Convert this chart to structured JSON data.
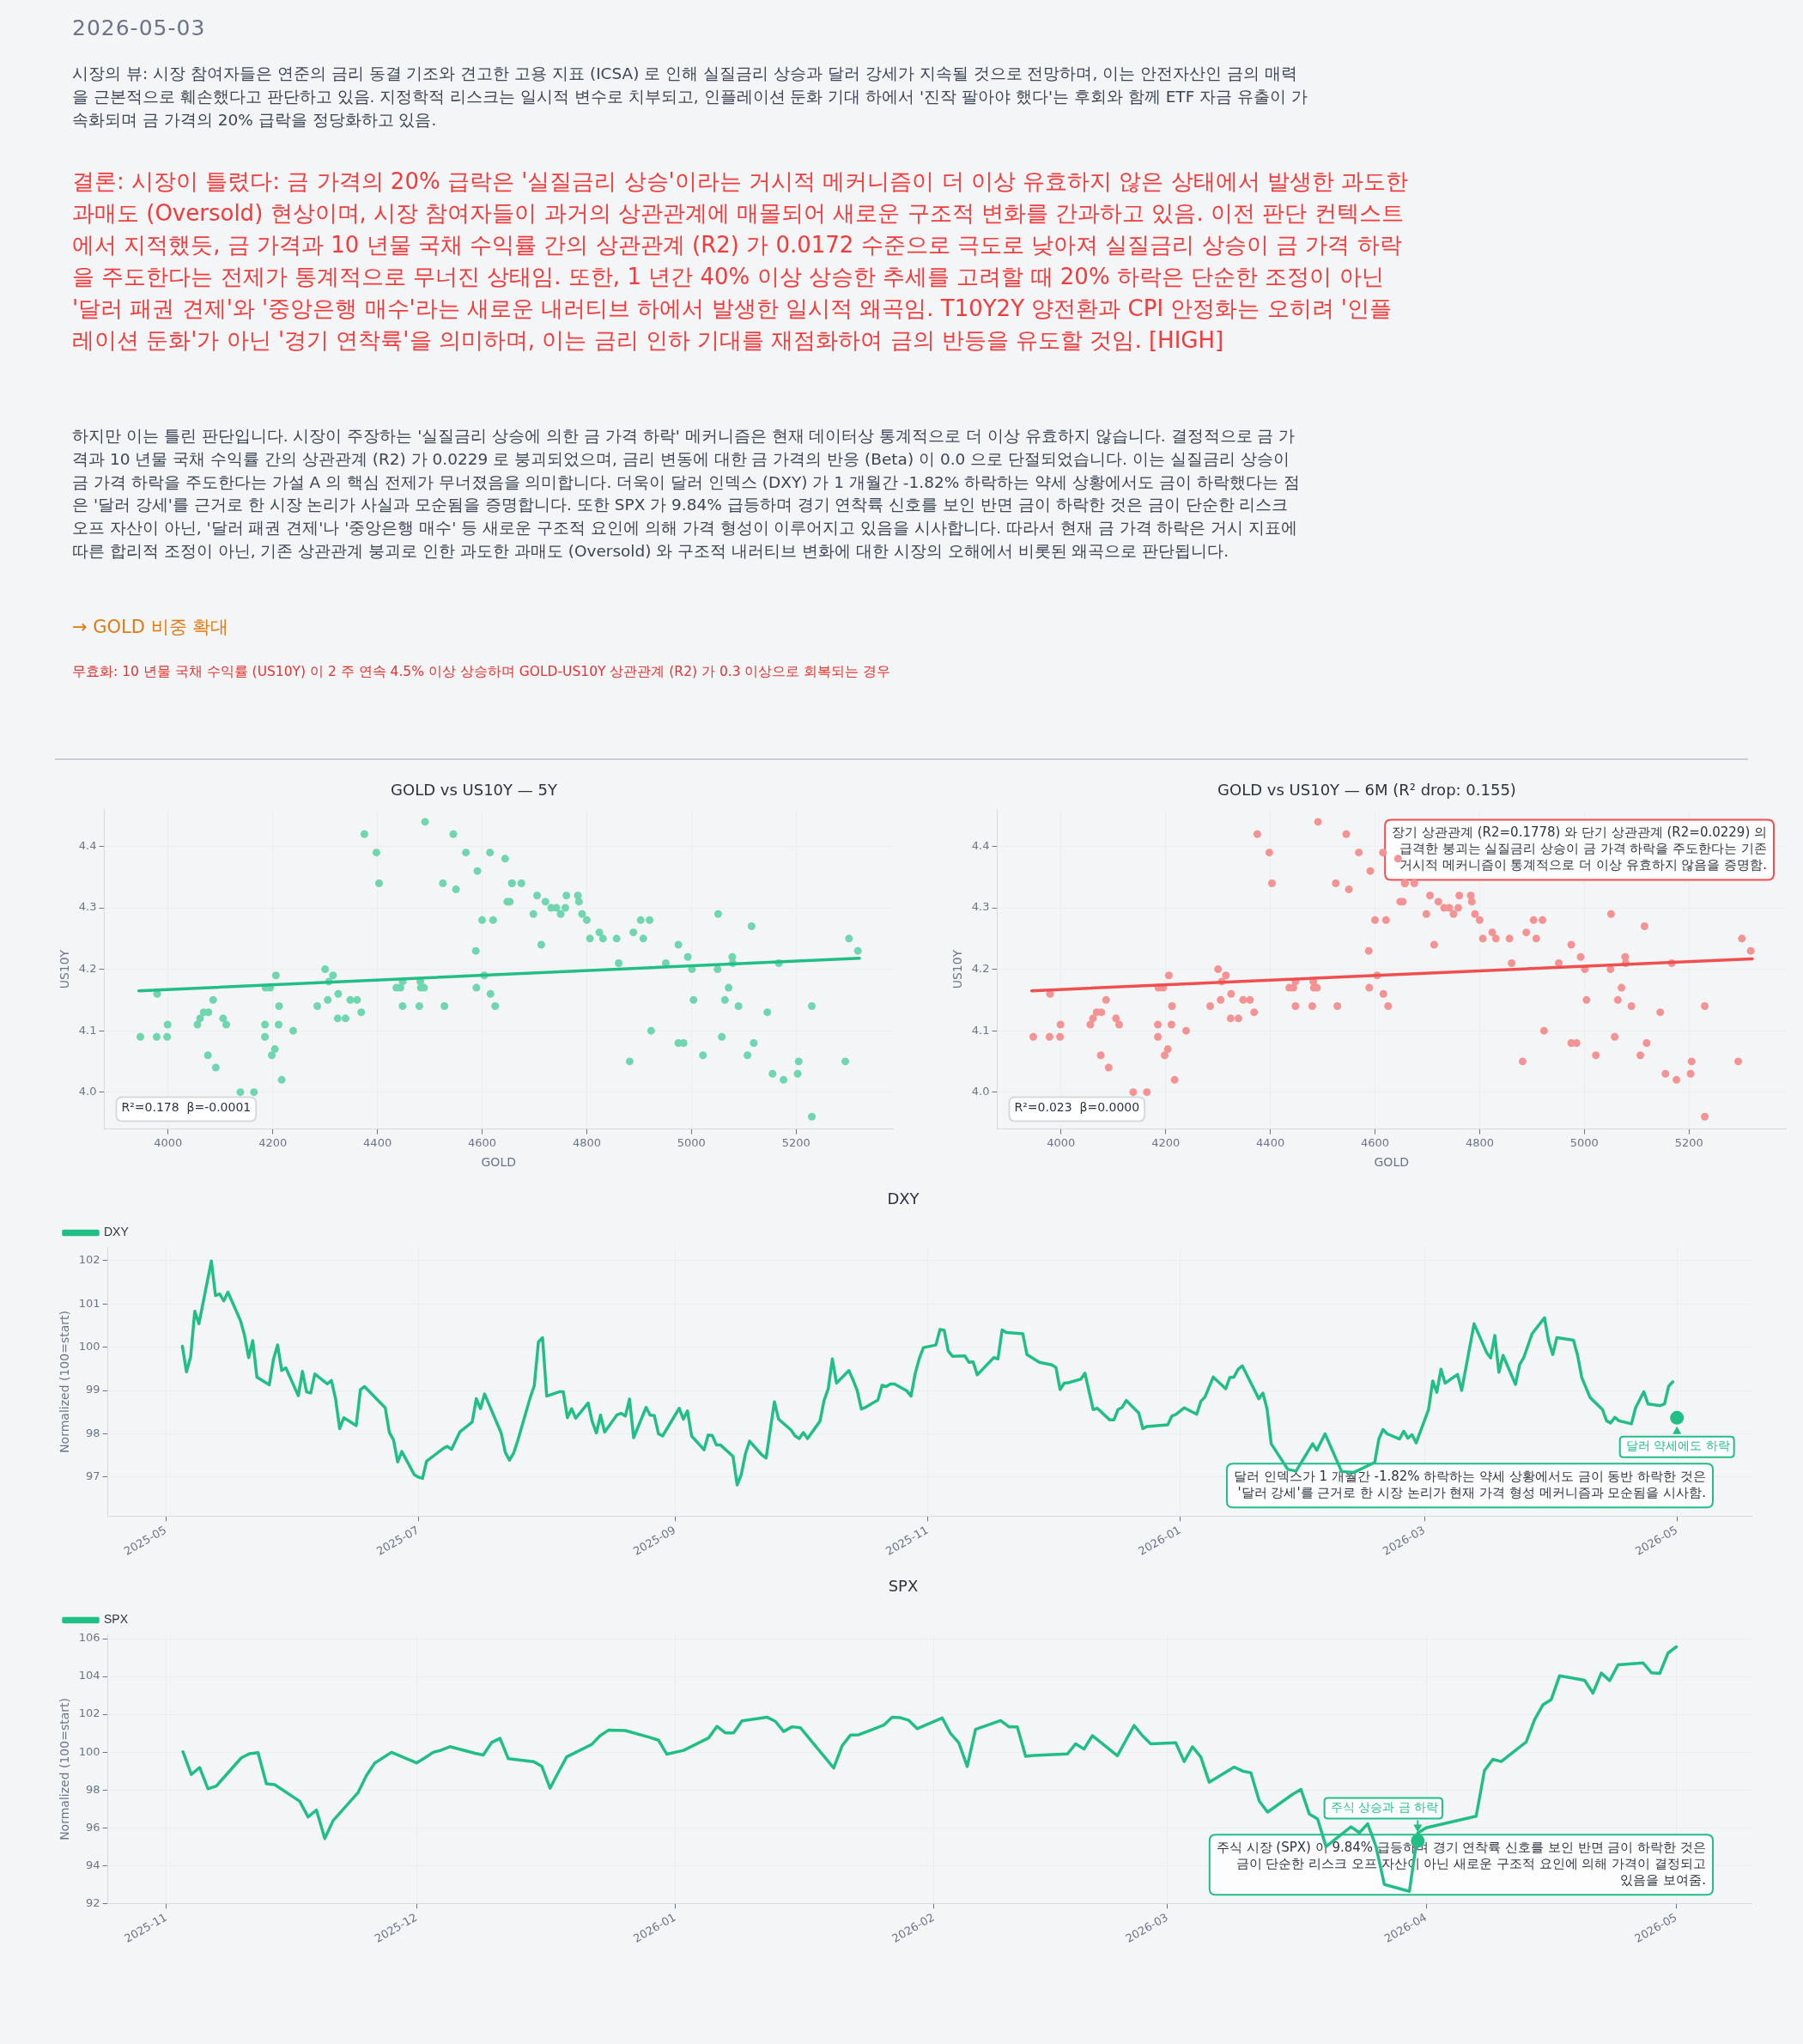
{
  "chart_data": [
    {
      "type": "other",
      "annotations": [
        "2026-05-03",
        "시장의 뷰: 시장 참여자들은 연준의 금리 동결 기조와 견고한 고용 지표 (ICSA) 로 인해 실질금리 상승과 달러 강세가 지속될 것으로 전망하며, 이는 안전자산인 금의 매력을 근본적으로 훼손했다고 판단하고 있음. 지정학적 리스크는 일시적 변수로 치부되고, 인플레이션 둔화 기대 하에서 '진작 팔아야 했다'는 후회와 함께 ETF 자금 유출이 가속화되며 금 가격의 20% 급락을 정당화하고 있음.",
        "결론: 시장이 틀렸다: 금 가격의 20% 급락은 '실질금리 상승'이라는 거시적 메커니즘이 더 이상 유효하지 않은 상태에서 발생한 과도한 과매도 (Oversold) 현상이며, 시장 참여자들이 과거의 상관관계에 매몰되어 새로운 구조적 변화를 간과하고 있음. 이전 판단 컨텍스트에서 지적했듯, 금 가격과 10 년물 국채 수익률 간의 상관관계 (R2) 가 0.0172 수준으로 극도로 낮아져 실질금리 상승이 금 가격 하락을 주도한다는 전제가 통계적으로 무너진 상태임. 또한, 1 년간 40% 이상 상승한 추세를 고려할 때 20% 하락은 단순한 조정이 아닌 '달러 패권 견제'와 '중앙은행 매수'라는 새로운 내러티브 하에서 발생한 일시적 왜곡임. T10Y2Y 양전환과 CPI 안정화는 오히려 '인플레이션 둔화'가 아닌 '경기 연착륙'을 의미하며, 이는 금리 인하 기대를 재점화하여 금의 반등을 유도할 것임.  [HIGH]",
        "하지만 이는 틀린 판단입니다. 시장이 주장하는 '실질금리 상승에 의한 금 가격 하락' 메커니즘은 현재 데이터상 통계적으로 더 이상 유효하지 않습니다. 결정적으로 금 가격과 10 년물 국채 수익률 간의 상관관계 (R2) 가 0.0229 로 붕괴되었으며, 금리 변동에 대한 금 가격의 반응 (Beta) 이 0.0 으로 단절되었습니다. 이는 실질금리 상승이 금 가격 하락을 주도한다는 가설 A 의 핵심 전제가 무너졌음을 의미합니다. 더욱이 달러 인덱스 (DXY) 가 1 개월간 -1.82% 하락하는 약세 상황에서도 금이 하락했다는 점은 '달러 강세'를 근거로 한 시장 논리가 사실과 모순됨을 증명합니다. 또한 SPX 가 9.84% 급등하며 경기 연착륙 신호를 보인 반면 금이 하락한 것은 금이 단순한 리스크 오프 자산이 아닌, '달러 패권 견제'나 '중앙은행 매수' 등 새로운 구조적 요인에 의해 가격 형성이 이루어지고 있음을 시사합니다. 따라서 현재 금 가격 하락은 거시 지표에 따른 합리적 조정이 아닌, 기존 상관관계 붕괴로 인한 과도한 과매도 (Oversold) 와 구조적 내러티브 변화에 대한 시장의 오해에서 비롯된 왜곡으로 판단됩니다.",
        "→ GOLD 비중 확대",
        "무효화: 10 년물 국채 수익률 (US10Y) 이 2 주 연속 4.5% 이상 상승하며 GOLD-US10Y 상관관계 (R2) 가 0.3 이상으로 회복되는 경우"
      ]
    },
    {
      "type": "scatter",
      "title": "GOLD vs US10Y — 5Y",
      "xlabel": "GOLD",
      "ylabel": "US10Y",
      "xlim": [
        3878,
        5385
      ],
      "ylim": [
        3.94,
        4.46
      ],
      "xticks": [
        4000,
        4200,
        4400,
        4600,
        4800,
        5000,
        5200
      ],
      "yticks": [
        {
          "value": 4,
          "label": "4.0"
        },
        4.1,
        4.2,
        4.3,
        4.4
      ],
      "grid": true,
      "series": [
        {
          "type": "scatter",
          "color": "#6fd6af",
          "x": [
            3947,
            3979,
            3978,
            3999,
            3998,
            4056,
            4061,
            4068,
            4077,
            4076,
            4086,
            4091,
            4105,
            4111,
            4138,
            4164,
            4186,
            4185,
            4185,
            4195,
            4206,
            4198,
            4204,
            4212,
            4211,
            4217,
            4239,
            4285,
            4300,
            4307,
            4315,
            4305,
            4325,
            4324,
            4339,
            4348,
            4361,
            4369,
            4375,
            4398,
            4403,
            4436,
            4444,
            4448,
            4448,
            4480,
            4482,
            4483,
            4489,
            4491,
            4528,
            4525,
            4545,
            4550,
            4569,
            4588,
            4589,
            4591,
            4600,
            4604,
            4615,
            4616,
            4621,
            4625,
            4644,
            4648,
            4653,
            4657,
            4657,
            4675,
            4698,
            4705,
            4713,
            4721,
            4732,
            4742,
            4750,
            4759,
            4761,
            4783,
            4785,
            4791,
            4800,
            4806,
            4824,
            4831,
            4857,
            4861,
            4882,
            4889,
            4903,
            4908,
            4920,
            4923,
            4951,
            4975,
            4975,
            4985,
            4993,
            5001,
            5004,
            5022,
            5050,
            5051,
            5058,
            5064,
            5071,
            5078,
            5079,
            5090,
            5107,
            5115,
            5119,
            5145,
            5155,
            5167,
            5176,
            5203,
            5205,
            5230,
            5230,
            5294,
            5301,
            5318
          ],
          "values": [
            4.09,
            4.16,
            4.09,
            4.11,
            4.09,
            4.11,
            4.12,
            4.13,
            4.13,
            4.06,
            4.15,
            4.04,
            4.12,
            4.11,
            4.0,
            4.0,
            4.17,
            4.11,
            4.09,
            4.17,
            4.19,
            4.06,
            4.07,
            4.14,
            4.11,
            4.02,
            4.1,
            4.14,
            4.2,
            4.18,
            4.19,
            4.15,
            4.16,
            4.12,
            4.12,
            4.15,
            4.15,
            4.13,
            4.42,
            4.39,
            4.34,
            4.17,
            4.17,
            4.18,
            4.14,
            4.14,
            4.18,
            4.17,
            4.17,
            4.44,
            4.14,
            4.34,
            4.42,
            4.33,
            4.39,
            4.23,
            4.17,
            4.36,
            4.28,
            4.19,
            4.39,
            4.16,
            4.28,
            4.14,
            4.38,
            4.31,
            4.31,
            4.34,
            4.34,
            4.34,
            4.29,
            4.32,
            4.24,
            4.31,
            4.3,
            4.3,
            4.29,
            4.3,
            4.32,
            4.32,
            4.31,
            4.29,
            4.28,
            4.25,
            4.26,
            4.25,
            4.25,
            4.21,
            4.05,
            4.26,
            4.28,
            4.25,
            4.28,
            4.1,
            4.21,
            4.24,
            4.08,
            4.08,
            4.22,
            4.2,
            4.15,
            4.06,
            4.2,
            4.29,
            4.09,
            4.15,
            4.17,
            4.22,
            4.21,
            4.14,
            4.06,
            4.27,
            4.08,
            4.13,
            4.03,
            4.21,
            4.02,
            4.03,
            4.05,
            4.14,
            3.96,
            4.05,
            4.25,
            4.23
          ]
        },
        {
          "type": "line",
          "color": "#21bf85",
          "x": [
            3944,
            5321
          ],
          "values": [
            4.165,
            4.218
          ]
        }
      ],
      "annotations": [
        "R²=0.178  β=-0.0001"
      ]
    },
    {
      "type": "scatter",
      "title": "GOLD vs US10Y — 6M (R² drop: 0.155)",
      "xlabel": "GOLD",
      "ylabel": "US10Y",
      "xlim": [
        3878,
        5385
      ],
      "ylim": [
        3.94,
        4.46
      ],
      "xticks": [
        4000,
        4200,
        4400,
        4600,
        4800,
        5000,
        5200
      ],
      "yticks": [
        {
          "value": 4,
          "label": "4.0"
        },
        4.1,
        4.2,
        4.3,
        4.4
      ],
      "grid": true,
      "series": [
        {
          "type": "scatter",
          "color": "#f49393",
          "x": [
            3947,
            3979,
            3978,
            3999,
            3998,
            4056,
            4061,
            4068,
            4077,
            4076,
            4086,
            4091,
            4105,
            4111,
            4138,
            4164,
            4186,
            4185,
            4185,
            4195,
            4206,
            4198,
            4204,
            4212,
            4211,
            4217,
            4239,
            4285,
            4300,
            4307,
            4315,
            4305,
            4325,
            4324,
            4339,
            4348,
            4361,
            4369,
            4375,
            4398,
            4403,
            4436,
            4444,
            4448,
            4448,
            4480,
            4482,
            4483,
            4489,
            4491,
            4528,
            4525,
            4545,
            4550,
            4569,
            4588,
            4589,
            4591,
            4600,
            4604,
            4615,
            4616,
            4621,
            4625,
            4644,
            4648,
            4653,
            4657,
            4657,
            4675,
            4698,
            4705,
            4713,
            4721,
            4732,
            4742,
            4750,
            4759,
            4761,
            4783,
            4785,
            4791,
            4800,
            4806,
            4824,
            4831,
            4857,
            4861,
            4882,
            4889,
            4903,
            4908,
            4920,
            4923,
            4951,
            4975,
            4975,
            4985,
            4993,
            5001,
            5004,
            5022,
            5050,
            5051,
            5058,
            5064,
            5071,
            5078,
            5079,
            5090,
            5107,
            5115,
            5119,
            5145,
            5155,
            5167,
            5176,
            5203,
            5205,
            5230,
            5230,
            5294,
            5301,
            5318
          ],
          "values": [
            4.09,
            4.16,
            4.09,
            4.11,
            4.09,
            4.11,
            4.12,
            4.13,
            4.13,
            4.06,
            4.15,
            4.04,
            4.12,
            4.11,
            4.0,
            4.0,
            4.17,
            4.11,
            4.09,
            4.17,
            4.19,
            4.06,
            4.07,
            4.14,
            4.11,
            4.02,
            4.1,
            4.14,
            4.2,
            4.18,
            4.19,
            4.15,
            4.16,
            4.12,
            4.12,
            4.15,
            4.15,
            4.13,
            4.42,
            4.39,
            4.34,
            4.17,
            4.17,
            4.18,
            4.14,
            4.14,
            4.18,
            4.17,
            4.17,
            4.44,
            4.14,
            4.34,
            4.42,
            4.33,
            4.39,
            4.23,
            4.17,
            4.36,
            4.28,
            4.19,
            4.39,
            4.16,
            4.28,
            4.14,
            4.38,
            4.31,
            4.31,
            4.34,
            4.34,
            4.34,
            4.29,
            4.32,
            4.24,
            4.31,
            4.3,
            4.3,
            4.29,
            4.3,
            4.32,
            4.32,
            4.31,
            4.29,
            4.28,
            4.25,
            4.26,
            4.25,
            4.25,
            4.21,
            4.05,
            4.26,
            4.28,
            4.25,
            4.28,
            4.1,
            4.21,
            4.24,
            4.08,
            4.08,
            4.22,
            4.2,
            4.15,
            4.06,
            4.2,
            4.29,
            4.09,
            4.15,
            4.17,
            4.22,
            4.21,
            4.14,
            4.06,
            4.27,
            4.08,
            4.13,
            4.03,
            4.21,
            4.02,
            4.03,
            4.05,
            4.14,
            3.96,
            4.05,
            4.25,
            4.23
          ]
        },
        {
          "type": "line",
          "color": "#ef4f4f",
          "x": [
            3944,
            5321
          ],
          "values": [
            4.165,
            4.217
          ]
        }
      ],
      "annotations": [
        "R²=0.023  β=0.0000",
        "장기 상관관계 (R2=0.1778) 와 단기 상관관계 (R2=0.0229) 의 급격한 붕괴는 실질금리 상승이 금 가격 하락을 주도한다는 기존 거시적 메커니즘이 통계적으로 더 이상 유효하지 않음을 증명함."
      ]
    },
    {
      "type": "line",
      "title": "DXY",
      "ylabel": "Normalized (100=start)",
      "xlim": [
        "2025-04-17",
        "2026-05-19"
      ],
      "ylim": [
        96.1,
        102.3
      ],
      "xticks": [
        "2025-05",
        "2025-07",
        "2025-09",
        "2025-11",
        "2026-01",
        "2026-03",
        "2026-05"
      ],
      "yticks": [
        97,
        98,
        99,
        100,
        101,
        102
      ],
      "grid": true,
      "legend": "top left",
      "x": [
        "2025-05-05",
        "2025-05-06",
        "2025-05-07",
        "2025-05-08",
        "2025-05-09",
        "2025-05-12",
        "2025-05-13",
        "2025-05-14",
        "2025-05-15",
        "2025-05-16",
        "2025-05-19",
        "2025-05-20",
        "2025-05-21",
        "2025-05-22",
        "2025-05-23",
        "2025-05-26",
        "2025-05-27",
        "2025-05-28",
        "2025-05-29",
        "2025-05-30",
        "2025-06-02",
        "2025-06-03",
        "2025-06-04",
        "2025-06-05",
        "2025-06-06",
        "2025-06-09",
        "2025-06-10",
        "2025-06-11",
        "2025-06-12",
        "2025-06-13",
        "2025-06-16",
        "2025-06-17",
        "2025-06-18",
        "2025-06-23",
        "2025-06-24",
        "2025-06-25",
        "2025-06-26",
        "2025-06-27",
        "2025-06-30",
        "2025-07-01",
        "2025-07-02",
        "2025-07-03",
        "2025-07-07",
        "2025-07-08",
        "2025-07-09",
        "2025-07-11",
        "2025-07-14",
        "2025-07-15",
        "2025-07-16",
        "2025-07-17",
        "2025-07-21",
        "2025-07-22",
        "2025-07-23",
        "2025-07-24",
        "2025-07-25",
        "2025-07-28",
        "2025-07-29",
        "2025-07-30",
        "2025-07-31",
        "2025-08-01",
        "2025-08-04",
        "2025-08-05",
        "2025-08-06",
        "2025-08-07",
        "2025-08-08",
        "2025-08-11",
        "2025-08-12",
        "2025-08-13",
        "2025-08-14",
        "2025-08-15",
        "2025-08-18",
        "2025-08-19",
        "2025-08-20",
        "2025-08-21",
        "2025-08-22",
        "2025-08-25",
        "2025-08-26",
        "2025-08-27",
        "2025-08-28",
        "2025-08-29",
        "2025-09-02",
        "2025-09-03",
        "2025-09-04",
        "2025-09-05",
        "2025-09-08",
        "2025-09-09",
        "2025-09-10",
        "2025-09-11",
        "2025-09-12",
        "2025-09-15",
        "2025-09-16",
        "2025-09-17",
        "2025-09-18",
        "2025-09-19",
        "2025-09-22",
        "2025-09-23",
        "2025-09-25",
        "2025-09-26",
        "2025-09-29",
        "2025-09-30",
        "2025-10-01",
        "2025-10-02",
        "2025-10-03",
        "2025-10-06",
        "2025-10-07",
        "2025-10-08",
        "2025-10-09",
        "2025-10-10",
        "2025-10-13",
        "2025-10-14",
        "2025-10-15",
        "2025-10-16",
        "2025-10-17",
        "2025-10-20",
        "2025-10-21",
        "2025-10-22",
        "2025-10-23",
        "2025-10-24",
        "2025-10-27",
        "2025-10-28",
        "2025-10-29",
        "2025-10-30",
        "2025-10-31",
        "2025-11-03",
        "2025-11-04",
        "2025-11-05",
        "2025-11-06",
        "2025-11-07",
        "2025-11-10",
        "2025-11-11",
        "2025-11-12",
        "2025-11-13",
        "2025-11-17",
        "2025-11-18",
        "2025-11-19",
        "2025-11-20",
        "2025-11-24",
        "2025-11-25",
        "2025-11-28",
        "2025-12-01",
        "2025-12-02",
        "2025-12-03",
        "2025-12-04",
        "2025-12-05",
        "2025-12-08",
        "2025-12-09",
        "2025-12-11",
        "2025-12-12",
        "2025-12-15",
        "2025-12-16",
        "2025-12-17",
        "2025-12-18",
        "2025-12-19",
        "2025-12-22",
        "2025-12-23",
        "2025-12-24",
        "2025-12-29",
        "2025-12-30",
        "2025-12-31",
        "2026-01-02",
        "2026-01-05",
        "2026-01-06",
        "2026-01-07",
        "2026-01-09",
        "2026-01-12",
        "2026-01-13",
        "2026-01-14",
        "2026-01-15",
        "2026-01-16",
        "2026-01-20",
        "2026-01-21",
        "2026-01-22",
        "2026-01-23",
        "2026-01-27",
        "2026-01-29",
        "2026-02-02",
        "2026-02-03",
        "2026-02-05",
        "2026-02-09",
        "2026-02-12",
        "2026-02-17",
        "2026-02-18",
        "2026-02-19",
        "2026-02-20",
        "2026-02-23",
        "2026-02-24",
        "2026-02-25",
        "2026-02-26",
        "2026-02-27",
        "2026-03-02",
        "2026-03-03",
        "2026-03-04",
        "2026-03-05",
        "2026-03-06",
        "2026-03-09",
        "2026-03-10",
        "2026-03-13",
        "2026-03-16",
        "2026-03-17",
        "2026-03-18",
        "2026-03-19",
        "2026-03-20",
        "2026-03-23",
        "2026-03-24",
        "2026-03-25",
        "2026-03-27",
        "2026-03-30",
        "2026-03-31",
        "2026-04-01",
        "2026-04-02",
        "2026-04-06",
        "2026-04-07",
        "2026-04-08",
        "2026-04-10",
        "2026-04-13",
        "2026-04-14",
        "2026-04-15",
        "2026-04-16",
        "2026-04-17",
        "2026-04-20",
        "2026-04-21",
        "2026-04-23",
        "2026-04-24",
        "2026-04-27",
        "2026-04-28",
        "2026-04-29",
        "2026-04-30"
      ],
      "series": [
        {
          "name": "DXY",
          "color": "#21bf85",
          "values": [
            100.02,
            99.43,
            99.78,
            100.83,
            100.54,
            101.99,
            101.19,
            101.23,
            101.07,
            101.27,
            100.62,
            100.28,
            99.76,
            100.15,
            99.31,
            99.13,
            99.72,
            100.05,
            99.46,
            99.52,
            98.88,
            99.44,
            98.97,
            98.94,
            99.38,
            99.15,
            99.23,
            98.81,
            98.12,
            98.37,
            98.19,
            99.02,
            99.09,
            98.6,
            98.03,
            97.86,
            97.35,
            97.59,
            97.06,
            97.0,
            96.97,
            97.37,
            97.66,
            97.71,
            97.64,
            98.04,
            98.27,
            98.81,
            98.58,
            98.92,
            98.02,
            97.57,
            97.39,
            97.55,
            97.84,
            98.83,
            99.11,
            100.12,
            100.22,
            98.87,
            98.97,
            98.97,
            98.37,
            98.58,
            98.36,
            98.71,
            98.28,
            98.02,
            98.43,
            98.04,
            98.44,
            98.47,
            98.41,
            98.8,
            97.91,
            98.61,
            98.43,
            98.42,
            98.0,
            97.95,
            98.59,
            98.34,
            98.53,
            97.95,
            97.63,
            97.97,
            97.96,
            97.74,
            97.74,
            97.48,
            96.82,
            97.06,
            97.54,
            97.83,
            97.51,
            97.44,
            98.74,
            98.34,
            98.09,
            97.95,
            97.89,
            98.03,
            97.89,
            98.29,
            98.77,
            99.04,
            99.73,
            99.17,
            99.46,
            99.24,
            99.0,
            98.57,
            98.61,
            98.78,
            99.12,
            99.09,
            99.15,
            99.15,
            98.99,
            98.87,
            99.39,
            99.74,
            99.99,
            100.05,
            100.41,
            100.39,
            99.91,
            99.79,
            99.8,
            99.65,
            99.66,
            99.36,
            99.76,
            99.73,
            100.4,
            100.34,
            100.31,
            99.83,
            99.65,
            99.59,
            99.53,
            99.02,
            99.17,
            99.18,
            99.26,
            99.4,
            98.56,
            98.59,
            98.32,
            98.32,
            98.56,
            98.61,
            98.77,
            98.48,
            98.12,
            98.17,
            98.21,
            98.41,
            98.45,
            98.6,
            98.45,
            98.75,
            98.85,
            99.31,
            99.04,
            99.3,
            99.31,
            99.49,
            99.57,
            98.81,
            98.94,
            98.57,
            97.77,
            97.18,
            97.14,
            97.77,
            97.62,
            98.0,
            97.13,
            97.11,
            97.34,
            97.88,
            98.1,
            98.0,
            97.88,
            98.06,
            97.9,
            97.98,
            97.79,
            98.56,
            99.22,
            98.96,
            99.49,
            99.17,
            99.37,
            99.0,
            100.54,
            99.88,
            99.75,
            100.27,
            99.42,
            99.81,
            99.14,
            99.6,
            99.76,
            100.31,
            100.68,
            100.14,
            99.83,
            100.22,
            100.16,
            99.81,
            99.3,
            98.84,
            98.56,
            98.3,
            98.25,
            98.38,
            98.3,
            98.23,
            98.6,
            98.97,
            98.69,
            98.65,
            98.69,
            99.1,
            99.2
          ]
        }
      ],
      "annotations": [
        {
          "text": "달러 약세에도 하락",
          "x": "2026-05-01",
          "y": 98.37
        },
        "달러 인덱스가 1 개월간 -1.82% 하락하는 약세 상황에서도 금이 동반 하락한 것은 '달러 강세'를 근거로 한 시장 논리가 현재 가격 형성 메커니즘과 모순됨을 시사함."
      ]
    },
    {
      "type": "line",
      "title": "SPX",
      "ylabel": "Normalized (100=start)",
      "xlim": [
        "2025-10-25",
        "2026-05-10"
      ],
      "ylim": [
        92,
        106.2
      ],
      "xticks": [
        "2025-11",
        "2025-12",
        "2026-01",
        "2026-02",
        "2026-03",
        "2026-04",
        "2026-05"
      ],
      "yticks": [
        92,
        94,
        96,
        98,
        100,
        102,
        104,
        106
      ],
      "grid": true,
      "legend": "top left",
      "x": [
        "2025-11-03",
        "2025-11-04",
        "2025-11-05",
        "2025-11-06",
        "2025-11-07",
        "2025-11-10",
        "2025-11-11",
        "2025-11-12",
        "2025-11-13",
        "2025-11-14",
        "2025-11-17",
        "2025-11-18",
        "2025-11-19",
        "2025-11-20",
        "2025-11-21",
        "2025-11-24",
        "2025-11-25",
        "2025-11-26",
        "2025-11-28",
        "2025-12-01",
        "2025-12-02",
        "2025-12-03",
        "2025-12-04",
        "2025-12-05",
        "2025-12-08",
        "2025-12-09",
        "2025-12-10",
        "2025-12-11",
        "2025-12-12",
        "2025-12-15",
        "2025-12-16",
        "2025-12-17",
        "2025-12-18",
        "2025-12-19",
        "2025-12-22",
        "2025-12-23",
        "2025-12-24",
        "2025-12-26",
        "2025-12-29",
        "2025-12-30",
        "2025-12-31",
        "2026-01-02",
        "2026-01-05",
        "2026-01-06",
        "2026-01-07",
        "2026-01-08",
        "2026-01-09",
        "2026-01-12",
        "2026-01-13",
        "2026-01-14",
        "2026-01-15",
        "2026-01-16",
        "2026-01-20",
        "2026-01-21",
        "2026-01-22",
        "2026-01-23",
        "2026-01-26",
        "2026-01-27",
        "2026-01-28",
        "2026-01-29",
        "2026-01-30",
        "2026-02-02",
        "2026-02-03",
        "2026-02-04",
        "2026-02-05",
        "2026-02-06",
        "2026-02-09",
        "2026-02-10",
        "2026-02-11",
        "2026-02-12",
        "2026-02-13",
        "2026-02-17",
        "2026-02-18",
        "2026-02-19",
        "2026-02-20",
        "2026-02-23",
        "2026-02-25",
        "2026-02-26",
        "2026-02-27",
        "2026-03-02",
        "2026-03-03",
        "2026-03-04",
        "2026-03-05",
        "2026-03-06",
        "2026-03-09",
        "2026-03-10",
        "2026-03-11",
        "2026-03-12",
        "2026-03-13",
        "2026-03-16",
        "2026-03-17",
        "2026-03-18",
        "2026-03-19",
        "2026-03-20",
        "2026-03-23",
        "2026-03-24",
        "2026-03-25",
        "2026-03-26",
        "2026-03-27",
        "2026-03-30",
        "2026-03-31",
        "2026-04-01",
        "2026-04-07",
        "2026-04-08",
        "2026-04-09",
        "2026-04-10",
        "2026-04-13",
        "2026-04-14",
        "2026-04-15",
        "2026-04-16",
        "2026-04-17",
        "2026-04-20",
        "2026-04-21",
        "2026-04-22",
        "2026-04-23",
        "2026-04-24",
        "2026-04-27",
        "2026-04-28",
        "2026-04-29",
        "2026-04-30",
        "2026-05-01"
      ],
      "series": [
        {
          "name": "SPX",
          "color": "#21bf85",
          "values": [
            100.02,
            98.82,
            99.19,
            98.06,
            98.21,
            99.7,
            99.92,
            99.97,
            98.33,
            98.28,
            97.4,
            96.57,
            96.94,
            95.43,
            96.38,
            97.87,
            98.77,
            99.43,
            99.99,
            99.43,
            99.7,
            99.99,
            100.11,
            100.29,
            99.94,
            99.85,
            100.51,
            100.73,
            99.65,
            99.5,
            99.26,
            98.09,
            98.94,
            99.75,
            100.41,
            100.87,
            101.16,
            101.14,
            100.77,
            100.63,
            99.89,
            100.09,
            100.75,
            101.36,
            101.02,
            101.02,
            101.65,
            101.85,
            101.63,
            101.09,
            101.34,
            101.29,
            99.16,
            100.33,
            100.9,
            100.92,
            101.43,
            101.85,
            101.82,
            101.68,
            101.24,
            101.81,
            100.99,
            100.49,
            99.24,
            101.2,
            101.67,
            101.34,
            101.34,
            99.78,
            99.83,
            99.9,
            100.44,
            100.16,
            100.87,
            99.81,
            101.41,
            100.87,
            100.44,
            100.49,
            99.5,
            100.28,
            99.74,
            98.41,
            99.21,
            99.0,
            98.91,
            97.42,
            96.83,
            97.77,
            98.03,
            96.73,
            96.47,
            95.01,
            96.05,
            95.74,
            96.21,
            95.01,
            93.0,
            92.64,
            95.72,
            96.0,
            96.61,
            99.03,
            99.62,
            99.5,
            100.54,
            101.72,
            102.5,
            102.78,
            104.04,
            103.8,
            103.12,
            104.18,
            103.78,
            104.61,
            104.72,
            104.2,
            104.16,
            105.24,
            105.57
          ]
        }
      ],
      "annotations": [
        {
          "text": "주식 상승과 금 하락",
          "x": "2026-03-31",
          "y": 95.31
        },
        "주식 시장 (SPX) 이 9.84% 급등하며 경기 연착륙 신호를 보인 반면 금이 하락한 것은 금이 단순한 리스크 오프 자산이 아닌 새로운 구조적 요인에 의해 가격이 결정되고 있음을 보여줌."
      ]
    }
  ]
}
